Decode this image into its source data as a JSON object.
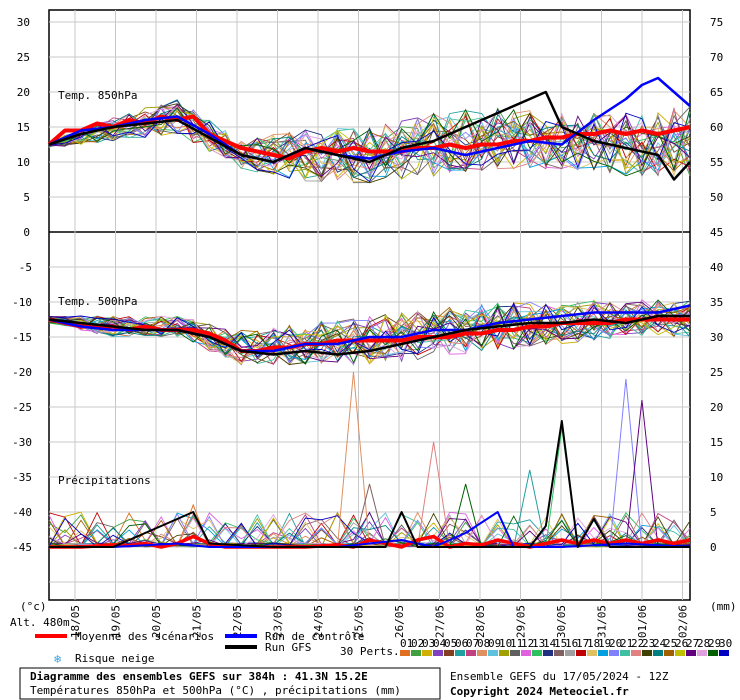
{
  "chart_data": {
    "type": "line",
    "title": "Diagramme des ensembles GEFS sur 384h : 41.3N 15.2E",
    "subtitle": "Températures 850hPa et 500hPa (°C) , précipitations (mm)",
    "run_info": "Ensemble GEFS du 17/05/2024 - 12Z",
    "copyright": "Copyright 2024 Meteociel.fr",
    "left_unit": "(°c)",
    "right_unit": "(mm)",
    "altitude": "Alt. 480m",
    "x_dates": [
      "18/05",
      "19/05",
      "20/05",
      "21/05",
      "22/05",
      "23/05",
      "24/05",
      "25/05",
      "26/05",
      "27/05",
      "28/05",
      "29/05",
      "30/05",
      "31/05",
      "01/06",
      "02/06"
    ],
    "panels": {
      "t850": {
        "label": "Temp. 850hPa",
        "left_ticks": [
          30,
          25,
          20,
          15,
          10,
          5,
          0
        ],
        "right_ticks": [
          75,
          70,
          65,
          60,
          55,
          50
        ]
      },
      "t500": {
        "label": "Temp. 500hPa",
        "left_ticks": [
          -5,
          -10,
          -15,
          -20,
          -25,
          -30,
          -35,
          -40,
          -45
        ],
        "right_ticks": [
          45,
          40,
          35,
          30,
          25,
          20,
          15,
          10,
          5,
          0
        ]
      },
      "precip": {
        "label": "Précipitations"
      }
    },
    "legend": {
      "mean": "Moyenne des scénarios",
      "control": "Run de contrôle",
      "gfs": "Run GFS",
      "snow": "Risque neige",
      "perts_label": "30 Perts.",
      "pert_ids": [
        "01",
        "02",
        "03",
        "04",
        "05",
        "06",
        "07",
        "08",
        "09",
        "10",
        "11",
        "12",
        "13",
        "14",
        "15",
        "16",
        "17",
        "18",
        "19",
        "20",
        "21",
        "22",
        "23",
        "24",
        "25",
        "26",
        "27",
        "28",
        "29",
        "30"
      ],
      "pert_colors": [
        "#e07020",
        "#40a040",
        "#d0b000",
        "#8040c0",
        "#804020",
        "#20a0a0",
        "#c04080",
        "#e09060",
        "#60c0e0",
        "#a0a000",
        "#606060",
        "#e060e0",
        "#30c060",
        "#203080",
        "#806060",
        "#a0a0a0",
        "#c00000",
        "#e0c060",
        "#00a0e0",
        "#8080ff",
        "#40c0a0",
        "#e08080",
        "#404000",
        "#008080",
        "#a06000",
        "#c0c000",
        "#600080",
        "#e0a0e0",
        "#006000",
        "#0000c0"
      ]
    },
    "series": [
      {
        "name": "Moyenne des scénarios",
        "color": "#ff0000",
        "t850": [
          [
            0,
            12.5
          ],
          [
            1,
            14.5
          ],
          [
            2,
            14.5
          ],
          [
            3,
            15.5
          ],
          [
            4,
            15
          ],
          [
            5,
            16
          ],
          [
            6,
            15.5
          ],
          [
            7,
            16.5
          ],
          [
            8,
            16
          ],
          [
            9,
            16.5
          ],
          [
            10,
            14
          ],
          [
            11,
            13
          ],
          [
            12,
            12
          ],
          [
            13,
            11.5
          ],
          [
            14,
            11
          ],
          [
            15,
            10.5
          ],
          [
            16,
            11.5
          ],
          [
            17,
            12
          ],
          [
            18,
            11.5
          ],
          [
            19,
            12
          ],
          [
            20,
            11.5
          ],
          [
            21,
            11.5
          ],
          [
            22,
            11.5
          ],
          [
            23,
            12
          ],
          [
            24,
            12
          ],
          [
            25,
            12.5
          ],
          [
            26,
            12
          ],
          [
            27,
            12.5
          ],
          [
            28,
            12.5
          ],
          [
            29,
            13
          ],
          [
            30,
            13
          ],
          [
            31,
            13.5
          ],
          [
            32,
            13.5
          ],
          [
            33,
            14
          ],
          [
            34,
            14
          ],
          [
            35,
            14.5
          ],
          [
            36,
            14
          ],
          [
            37,
            14.5
          ],
          [
            38,
            14
          ],
          [
            39,
            14.5
          ],
          [
            40,
            15
          ]
        ],
        "t500": [
          [
            0,
            -12.5
          ],
          [
            1,
            -13
          ],
          [
            2,
            -13.5
          ],
          [
            3,
            -13.5
          ],
          [
            4,
            -13.5
          ],
          [
            5,
            -14
          ],
          [
            6,
            -13.5
          ],
          [
            7,
            -14
          ],
          [
            8,
            -14
          ],
          [
            9,
            -14
          ],
          [
            10,
            -14.5
          ],
          [
            11,
            -15.5
          ],
          [
            12,
            -17
          ],
          [
            13,
            -17
          ],
          [
            14,
            -16.5
          ],
          [
            15,
            -16.5
          ],
          [
            16,
            -16
          ],
          [
            17,
            -16
          ],
          [
            18,
            -15.5
          ],
          [
            19,
            -15.5
          ],
          [
            20,
            -15.5
          ],
          [
            21,
            -15.5
          ],
          [
            22,
            -15.5
          ],
          [
            23,
            -15
          ],
          [
            24,
            -15
          ],
          [
            25,
            -15
          ],
          [
            26,
            -14.5
          ],
          [
            27,
            -14.5
          ],
          [
            28,
            -14
          ],
          [
            29,
            -14
          ],
          [
            30,
            -13.5
          ],
          [
            31,
            -13.5
          ],
          [
            32,
            -13
          ],
          [
            33,
            -13
          ],
          [
            34,
            -13
          ],
          [
            35,
            -13
          ],
          [
            36,
            -12.5
          ],
          [
            37,
            -12.5
          ],
          [
            38,
            -12.5
          ],
          [
            39,
            -12.5
          ],
          [
            40,
            -12.5
          ]
        ],
        "precip": [
          [
            0,
            0
          ],
          [
            2,
            0
          ],
          [
            4,
            0.3
          ],
          [
            5,
            0.2
          ],
          [
            6,
            0.5
          ],
          [
            7,
            0
          ],
          [
            8,
            0.5
          ],
          [
            9,
            1.5
          ],
          [
            10,
            0.5
          ],
          [
            11,
            0
          ],
          [
            14,
            0
          ],
          [
            16,
            0
          ],
          [
            18,
            0.3
          ],
          [
            19,
            0
          ],
          [
            20,
            1
          ],
          [
            21,
            0.5
          ],
          [
            22,
            0
          ],
          [
            23,
            1
          ],
          [
            24,
            1.5
          ],
          [
            25,
            0
          ],
          [
            26,
            0.5
          ],
          [
            27,
            0.3
          ],
          [
            28,
            1
          ],
          [
            29,
            0.5
          ],
          [
            30,
            0
          ],
          [
            31,
            0.5
          ],
          [
            32,
            1
          ],
          [
            33,
            0.5
          ],
          [
            34,
            1
          ],
          [
            35,
            0.5
          ],
          [
            36,
            1
          ],
          [
            37,
            0.5
          ],
          [
            38,
            1
          ],
          [
            39,
            0.5
          ],
          [
            40,
            1
          ]
        ]
      },
      {
        "name": "Run de contrôle",
        "color": "#0000ff",
        "t850": [
          [
            0,
            12.5
          ],
          [
            2,
            14.5
          ],
          [
            4,
            15
          ],
          [
            6,
            16
          ],
          [
            8,
            16.5
          ],
          [
            10,
            14
          ],
          [
            12,
            11
          ],
          [
            14,
            10
          ],
          [
            16,
            12
          ],
          [
            18,
            11
          ],
          [
            20,
            10.5
          ],
          [
            22,
            11.5
          ],
          [
            24,
            12
          ],
          [
            26,
            11
          ],
          [
            28,
            12
          ],
          [
            30,
            13
          ],
          [
            32,
            12.5
          ],
          [
            34,
            16
          ],
          [
            36,
            19
          ],
          [
            37,
            21
          ],
          [
            38,
            22
          ],
          [
            39,
            20
          ],
          [
            40,
            18
          ]
        ],
        "t500": [
          [
            0,
            -12.5
          ],
          [
            2,
            -13.5
          ],
          [
            4,
            -14
          ],
          [
            6,
            -14
          ],
          [
            8,
            -14
          ],
          [
            10,
            -15
          ],
          [
            12,
            -17
          ],
          [
            14,
            -17
          ],
          [
            16,
            -16
          ],
          [
            18,
            -16
          ],
          [
            20,
            -15
          ],
          [
            22,
            -15
          ],
          [
            24,
            -14
          ],
          [
            26,
            -14
          ],
          [
            28,
            -13
          ],
          [
            30,
            -12.5
          ],
          [
            32,
            -12
          ],
          [
            34,
            -11.5
          ],
          [
            36,
            -11.5
          ],
          [
            38,
            -11.5
          ],
          [
            40,
            -10.5
          ]
        ],
        "precip": [
          [
            0,
            0
          ],
          [
            4,
            0
          ],
          [
            8,
            0.5
          ],
          [
            10,
            0
          ],
          [
            14,
            0
          ],
          [
            18,
            0
          ],
          [
            22,
            1
          ],
          [
            24,
            0
          ],
          [
            26,
            2
          ],
          [
            28,
            5
          ],
          [
            29,
            0
          ],
          [
            32,
            0
          ],
          [
            36,
            0.5
          ],
          [
            40,
            0
          ]
        ]
      },
      {
        "name": "Run GFS",
        "color": "#000000",
        "t850": [
          [
            0,
            12.5
          ],
          [
            2,
            14
          ],
          [
            4,
            15
          ],
          [
            6,
            15.5
          ],
          [
            8,
            16
          ],
          [
            10,
            13.5
          ],
          [
            12,
            11
          ],
          [
            14,
            10
          ],
          [
            16,
            12
          ],
          [
            18,
            11
          ],
          [
            20,
            10
          ],
          [
            22,
            12
          ],
          [
            24,
            13
          ],
          [
            26,
            15
          ],
          [
            28,
            17
          ],
          [
            30,
            19
          ],
          [
            31,
            20
          ],
          [
            32,
            15
          ],
          [
            34,
            13
          ],
          [
            36,
            12
          ],
          [
            38,
            11
          ],
          [
            39,
            7.5
          ],
          [
            40,
            10
          ]
        ],
        "t500": [
          [
            0,
            -12.5
          ],
          [
            2,
            -13
          ],
          [
            4,
            -13.5
          ],
          [
            6,
            -14
          ],
          [
            8,
            -14
          ],
          [
            10,
            -15
          ],
          [
            12,
            -17
          ],
          [
            14,
            -17.5
          ],
          [
            16,
            -17
          ],
          [
            18,
            -17.5
          ],
          [
            20,
            -17
          ],
          [
            22,
            -16
          ],
          [
            24,
            -15
          ],
          [
            26,
            -14
          ],
          [
            28,
            -13.5
          ],
          [
            30,
            -13
          ],
          [
            32,
            -13
          ],
          [
            34,
            -12.5
          ],
          [
            36,
            -13
          ],
          [
            38,
            -12
          ],
          [
            40,
            -12
          ]
        ],
        "precip": [
          [
            0,
            0
          ],
          [
            4,
            0
          ],
          [
            9,
            5
          ],
          [
            10,
            0.5
          ],
          [
            14,
            0
          ],
          [
            18,
            0
          ],
          [
            21,
            0
          ],
          [
            22,
            5
          ],
          [
            23,
            0
          ],
          [
            26,
            0
          ],
          [
            30,
            0
          ],
          [
            31,
            3
          ],
          [
            32,
            18
          ],
          [
            33,
            0
          ],
          [
            34,
            4
          ],
          [
            35,
            0
          ],
          [
            38,
            0
          ],
          [
            40,
            0
          ]
        ]
      }
    ],
    "perturbations_range": {
      "t850_min": [
        [
          0,
          12
        ],
        [
          4,
          13
        ],
        [
          8,
          14
        ],
        [
          12,
          9
        ],
        [
          16,
          7
        ],
        [
          20,
          7
        ],
        [
          24,
          8
        ],
        [
          28,
          9
        ],
        [
          32,
          9
        ],
        [
          36,
          8
        ],
        [
          40,
          8
        ]
      ],
      "t850_max": [
        [
          0,
          13
        ],
        [
          4,
          16.5
        ],
        [
          8,
          19
        ],
        [
          12,
          13
        ],
        [
          16,
          15
        ],
        [
          20,
          15
        ],
        [
          24,
          17
        ],
        [
          28,
          18
        ],
        [
          32,
          17
        ],
        [
          36,
          17
        ],
        [
          40,
          18
        ]
      ],
      "t500_min": [
        [
          0,
          -13
        ],
        [
          4,
          -15
        ],
        [
          8,
          -15
        ],
        [
          12,
          -19
        ],
        [
          16,
          -19
        ],
        [
          20,
          -19
        ],
        [
          24,
          -18
        ],
        [
          28,
          -17
        ],
        [
          32,
          -16
        ],
        [
          36,
          -15
        ],
        [
          40,
          -15
        ]
      ],
      "t500_max": [
        [
          0,
          -12
        ],
        [
          4,
          -12
        ],
        [
          8,
          -12
        ],
        [
          12,
          -14
        ],
        [
          16,
          -13
        ],
        [
          20,
          -12
        ],
        [
          24,
          -11
        ],
        [
          28,
          -10
        ],
        [
          32,
          -10
        ],
        [
          36,
          -9.5
        ],
        [
          40,
          -9.5
        ]
      ],
      "precip_peaks": [
        [
          9,
          6
        ],
        [
          19,
          25
        ],
        [
          20,
          9
        ],
        [
          24,
          15
        ],
        [
          26,
          9
        ],
        [
          30,
          11
        ],
        [
          32,
          17
        ],
        [
          36,
          24
        ],
        [
          37,
          21
        ]
      ]
    }
  }
}
